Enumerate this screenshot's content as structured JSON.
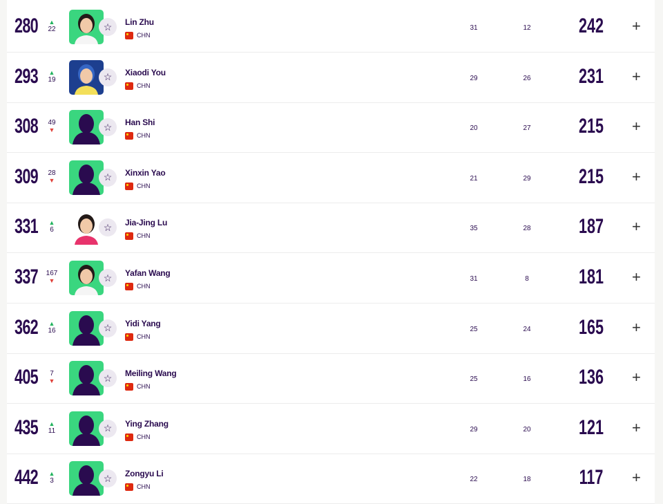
{
  "colors": {
    "text": "#2a0b4f",
    "up": "#22b35e",
    "down": "#e0413a",
    "avatar_green": "#3ad67f"
  },
  "rows": [
    {
      "rank": "280",
      "dir": "up",
      "move": "22",
      "name": "Lin Zhu",
      "country": "CHN",
      "col1": "31",
      "col2": "12",
      "points": "242",
      "avatar": "photo"
    },
    {
      "rank": "293",
      "dir": "up",
      "move": "19",
      "name": "Xiaodi You",
      "country": "CHN",
      "col1": "29",
      "col2": "26",
      "points": "231",
      "avatar": "photo-blue"
    },
    {
      "rank": "308",
      "dir": "down",
      "move": "49",
      "name": "Han Shi",
      "country": "CHN",
      "col1": "20",
      "col2": "27",
      "points": "215",
      "avatar": "silhouette"
    },
    {
      "rank": "309",
      "dir": "down",
      "move": "28",
      "name": "Xinxin Yao",
      "country": "CHN",
      "col1": "21",
      "col2": "29",
      "points": "215",
      "avatar": "silhouette"
    },
    {
      "rank": "331",
      "dir": "up",
      "move": "6",
      "name": "Jia-Jing Lu",
      "country": "CHN",
      "col1": "35",
      "col2": "28",
      "points": "187",
      "avatar": "photo-white"
    },
    {
      "rank": "337",
      "dir": "down",
      "move": "167",
      "name": "Yafan Wang",
      "country": "CHN",
      "col1": "31",
      "col2": "8",
      "points": "181",
      "avatar": "photo"
    },
    {
      "rank": "362",
      "dir": "up",
      "move": "16",
      "name": "Yidi Yang",
      "country": "CHN",
      "col1": "25",
      "col2": "24",
      "points": "165",
      "avatar": "silhouette"
    },
    {
      "rank": "405",
      "dir": "down",
      "move": "7",
      "name": "Meiling Wang",
      "country": "CHN",
      "col1": "25",
      "col2": "16",
      "points": "136",
      "avatar": "silhouette"
    },
    {
      "rank": "435",
      "dir": "up",
      "move": "11",
      "name": "Ying Zhang",
      "country": "CHN",
      "col1": "29",
      "col2": "20",
      "points": "121",
      "avatar": "silhouette"
    },
    {
      "rank": "442",
      "dir": "up",
      "move": "3",
      "name": "Zongyu Li",
      "country": "CHN",
      "col1": "22",
      "col2": "18",
      "points": "117",
      "avatar": "silhouette"
    }
  ]
}
